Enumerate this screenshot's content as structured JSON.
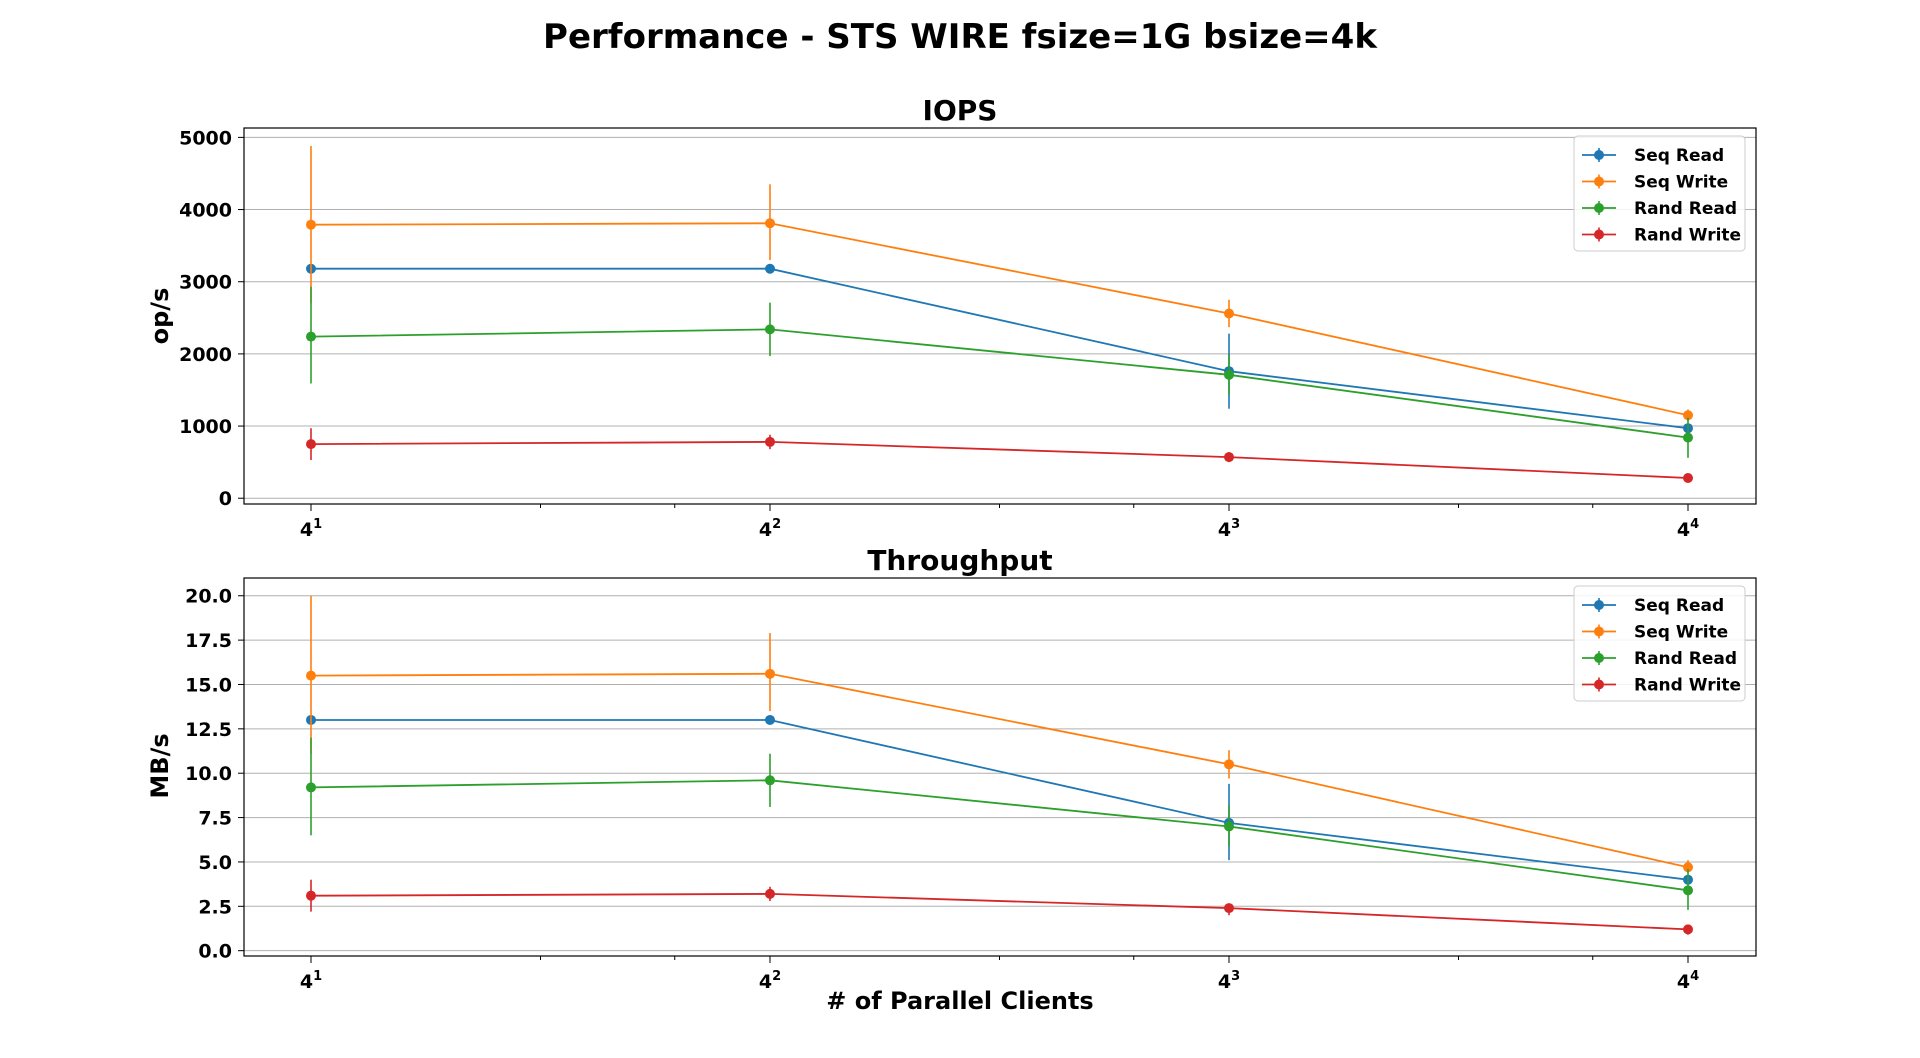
{
  "figure": {
    "title": "Performance - STS WIRE fsize=1G bsize=4k"
  },
  "chart_data": [
    {
      "type": "line",
      "title": "IOPS",
      "xlabel": "",
      "ylabel": "op/s",
      "x_scale": "log4",
      "x": [
        4,
        16,
        64,
        256
      ],
      "xticks": [
        {
          "base": "4",
          "exp": "1"
        },
        {
          "base": "4",
          "exp": "2"
        },
        {
          "base": "4",
          "exp": "3"
        },
        {
          "base": "4",
          "exp": "4"
        }
      ],
      "ylim": [
        -80,
        5130
      ],
      "yticks": [
        "0",
        "1000",
        "2000",
        "3000",
        "4000",
        "5000"
      ],
      "ytick_values": [
        0,
        1000,
        2000,
        3000,
        4000,
        5000
      ],
      "grid": "horizontal",
      "legend_position": "top-right",
      "series": [
        {
          "name": "Seq Read",
          "color": "#1f77b4",
          "values": [
            3180,
            3180,
            1760,
            970
          ],
          "err_low": [
            3180,
            3180,
            1240,
            930
          ],
          "err_high": [
            3180,
            3180,
            2280,
            1010
          ]
        },
        {
          "name": "Seq Write",
          "color": "#ff7f0e",
          "values": [
            3790,
            3810,
            2560,
            1150
          ],
          "err_low": [
            2700,
            3300,
            2370,
            1070
          ],
          "err_high": [
            4880,
            4350,
            2750,
            1230
          ]
        },
        {
          "name": "Rand Read",
          "color": "#2ca02c",
          "values": [
            2240,
            2340,
            1710,
            840
          ],
          "err_low": [
            1590,
            1970,
            1430,
            560
          ],
          "err_high": [
            2930,
            2710,
            1990,
            1120
          ]
        },
        {
          "name": "Rand Write",
          "color": "#d62728",
          "values": [
            750,
            780,
            570,
            280
          ],
          "err_low": [
            530,
            680,
            500,
            220
          ],
          "err_high": [
            970,
            880,
            640,
            340
          ]
        }
      ]
    },
    {
      "type": "line",
      "title": "Throughput",
      "xlabel": "# of Parallel Clients",
      "ylabel": "MB/s",
      "x_scale": "log4",
      "x": [
        4,
        16,
        64,
        256
      ],
      "xticks": [
        {
          "base": "4",
          "exp": "1"
        },
        {
          "base": "4",
          "exp": "2"
        },
        {
          "base": "4",
          "exp": "3"
        },
        {
          "base": "4",
          "exp": "4"
        }
      ],
      "ylim": [
        -0.3,
        21.0
      ],
      "yticks": [
        "0.0",
        "2.5",
        "5.0",
        "7.5",
        "10.0",
        "12.5",
        "15.0",
        "17.5",
        "20.0"
      ],
      "ytick_values": [
        0,
        2.5,
        5,
        7.5,
        10,
        12.5,
        15,
        17.5,
        20
      ],
      "grid": "horizontal",
      "legend_position": "top-right",
      "series": [
        {
          "name": "Seq Read",
          "color": "#1f77b4",
          "values": [
            13.0,
            13.0,
            7.2,
            4.0
          ],
          "err_low": [
            13.0,
            13.0,
            5.1,
            3.8
          ],
          "err_high": [
            13.0,
            13.0,
            9.4,
            4.2
          ]
        },
        {
          "name": "Seq Write",
          "color": "#ff7f0e",
          "values": [
            15.5,
            15.6,
            10.5,
            4.7
          ],
          "err_low": [
            11.1,
            13.5,
            9.7,
            4.4
          ],
          "err_high": [
            20.0,
            17.9,
            11.3,
            5.1
          ]
        },
        {
          "name": "Rand Read",
          "color": "#2ca02c",
          "values": [
            9.2,
            9.6,
            7.0,
            3.4
          ],
          "err_low": [
            6.5,
            8.1,
            5.9,
            2.3
          ],
          "err_high": [
            12.0,
            11.1,
            8.2,
            4.6
          ]
        },
        {
          "name": "Rand Write",
          "color": "#d62728",
          "values": [
            3.1,
            3.2,
            2.4,
            1.2
          ],
          "err_low": [
            2.2,
            2.8,
            2.0,
            0.9
          ],
          "err_high": [
            4.0,
            3.6,
            2.6,
            1.4
          ]
        }
      ]
    }
  ]
}
